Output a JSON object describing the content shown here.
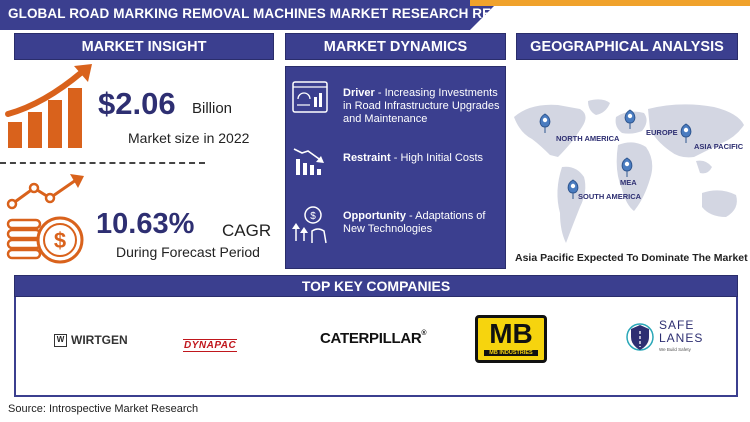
{
  "header": {
    "title": "GLOBAL ROAD MARKING REMOVAL MACHINES MARKET RESEARCH REPORT"
  },
  "market_insight": {
    "heading": "MARKET INSIGHT",
    "market_size_value": "$2.06",
    "market_size_unit": "Billion",
    "market_size_caption": "Market size in 2022",
    "cagr_value": "10.63%",
    "cagr_unit": "CAGR",
    "cagr_caption": "During Forecast Period"
  },
  "market_dynamics": {
    "heading": "MARKET DYNAMICS",
    "items": [
      {
        "label": "Driver",
        "sep": " - ",
        "text": "Increasing Investments in Road Infrastructure Upgrades and Maintenance",
        "icon": "dashboard-chart-icon"
      },
      {
        "label": "Restraint",
        "sep": " - ",
        "text": "High Initial Costs",
        "icon": "declining-chart-icon"
      },
      {
        "label": "Opportunity",
        "sep": " - ",
        "text": "Adaptations of New Technologies",
        "icon": "growth-opportunity-icon"
      }
    ]
  },
  "geographical_analysis": {
    "heading": "GEOGRAPHICAL ANALYSIS",
    "regions": [
      "NORTH AMERICA",
      "EUROPE",
      "ASIA PACIFIC",
      "MEA",
      "SOUTH AMERICA"
    ],
    "caption": "Asia Pacific Expected To Dominate The Market"
  },
  "top_companies": {
    "heading": "TOP KEY COMPANIES",
    "logos": [
      {
        "name": "WIRTGEN",
        "mark": "W"
      },
      {
        "name": "DYNAPAC"
      },
      {
        "name": "CATERPILLAR",
        "suffix": "®"
      },
      {
        "name": "MB",
        "sub": "MB INDUSTRIES"
      },
      {
        "name_line1": "SAFE",
        "name_line2": "LANES",
        "tagline": "We Build Safety"
      }
    ]
  },
  "colors": {
    "navy": "#3b3f8f",
    "orange": "#d9621c",
    "accent": "#f0a22b",
    "map_gray": "#d3d6e2"
  },
  "footer": {
    "source": "Source: Introspective Market Research"
  }
}
